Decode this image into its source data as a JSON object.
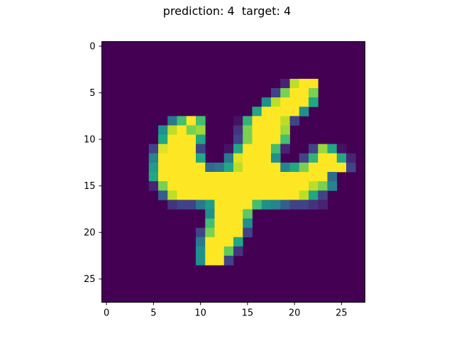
{
  "figure": {
    "title": "prediction: 4  target: 4"
  },
  "chart_data": {
    "type": "heatmap",
    "colormap": "viridis",
    "rows": 28,
    "cols": 28,
    "xlim": [
      -0.5,
      27.5
    ],
    "ylim": [
      27.5,
      -0.5
    ],
    "xticks": [
      0,
      5,
      10,
      15,
      20,
      25
    ],
    "yticks": [
      0,
      5,
      10,
      15,
      20,
      25
    ],
    "xlabel": "",
    "ylabel": "",
    "grid": false,
    "values_rle": [
      "0:28",
      "0:28",
      "0:28",
      "0:28",
      "0:19,0.1,0.9,1:2,0:5",
      "0:18,0.2,0.8,1:2,0.8,0:5",
      "0:17,0.5,0.9,1:3,0.6,0:5",
      "0:16,0.6,1:4,0.5,0:6",
      "0:7,0.4,0.7,1,0.7,0:3,0.05,0.65,1:3,0.9,0.2,0:6",
      "0:6,0.5,0.9,1,0.8,0.85,0:3,0.15,0.8,1:3,0.85,0:7",
      "0:6,0.6,1:3,0.6,0:3,0.2,0.8,1:3,0.7,0:8",
      "0:5,0.2,0.95,1:3,0.2,0:2,0.05,0.6,1:3,0.7,0.1,0:2,0.2,0.85,0.6,0.05,0:3",
      "0:5,0.45,1:4,0.6,0:2,0.4,0.95,1:3,0.5,0:2,0.2,0.65,1:2,0.6,0.1,0:3",
      "0:5,0.55,1:5,0.35,0.4,0.6,0.9,1:4,0.45,0.6,0.8,1:4,0.2,0:3",
      "0:5,0.6,1:18,0.35,0:4",
      "0:5,0.1,0.8,1:15,0.9,0.8,0.45,0:5",
      "0:6,0.3,0.9,1:13,0.9,0.6,0.2,0:6",
      "0:7,0.15,0.2,0.2,0.4,0.55,1:4,0.7,0.5,0.45,0.3,0.2,0.2,0.15,0.1,0:7",
      "0:11,0.5,1:3,0.75,0:13",
      "0:11,0.7,1:3,0.5,0:13",
      "0:10,0.2,0.8,1:3,0.2,0:13",
      "0:10,0.4,1:3,0.6,0:14",
      "0:10,0.5,1:2,0.75,0.15,0:14",
      "0:10,0.5,1:2,0.2,0:15",
      "0:28",
      "0:28",
      "0:28",
      "0:28"
    ]
  }
}
